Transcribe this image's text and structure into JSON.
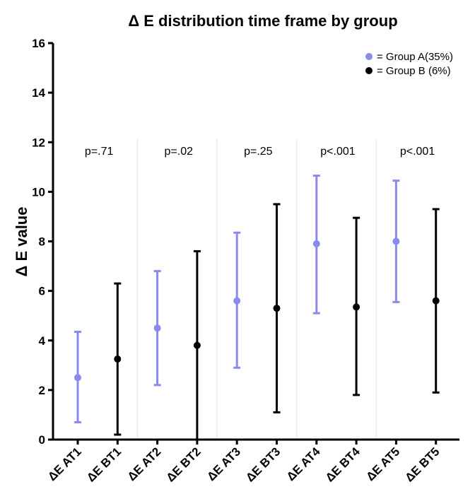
{
  "chart_data": {
    "type": "scatter",
    "title": "Δ E distribution time frame by group",
    "xlabel": "",
    "ylabel": "Δ E value",
    "ylim": [
      0,
      16
    ],
    "yticks": [
      "0",
      "2",
      "4",
      "6",
      "8",
      "10",
      "12",
      "14",
      "16"
    ],
    "categories": [
      "ΔE AT1",
      "ΔE BT1",
      "ΔE AT2",
      "ΔE BT2",
      "ΔE AT3",
      "ΔE BT3",
      "ΔE AT4",
      "ΔE BT4",
      "ΔE AT5",
      "ΔE BT5"
    ],
    "series": [
      {
        "name": "= Group A(35%)",
        "color": "#8a8aee",
        "x_index": [
          0,
          2,
          4,
          6,
          8
        ],
        "mean": [
          2.5,
          4.5,
          5.6,
          7.9,
          8.0
        ],
        "lower": [
          0.7,
          2.2,
          2.9,
          5.1,
          5.55
        ],
        "upper": [
          4.35,
          6.8,
          8.35,
          10.65,
          10.45
        ]
      },
      {
        "name": "= Group B (6%)",
        "color": "#000000",
        "x_index": [
          1,
          3,
          5,
          7,
          9
        ],
        "mean": [
          3.25,
          3.8,
          5.3,
          5.35,
          5.6
        ],
        "lower": [
          0.2,
          0.0,
          1.1,
          1.8,
          1.9
        ],
        "upper": [
          6.3,
          7.6,
          9.5,
          8.95,
          9.3
        ]
      }
    ],
    "annotations": [
      {
        "text": "p=.71",
        "group": 0
      },
      {
        "text": "p=.02",
        "group": 1
      },
      {
        "text": "p=.25",
        "group": 2
      },
      {
        "text": "p<.001",
        "group": 3
      },
      {
        "text": "p<.001",
        "group": 4
      }
    ],
    "grid": false,
    "group_separators": true,
    "legend_position": "top-right"
  }
}
